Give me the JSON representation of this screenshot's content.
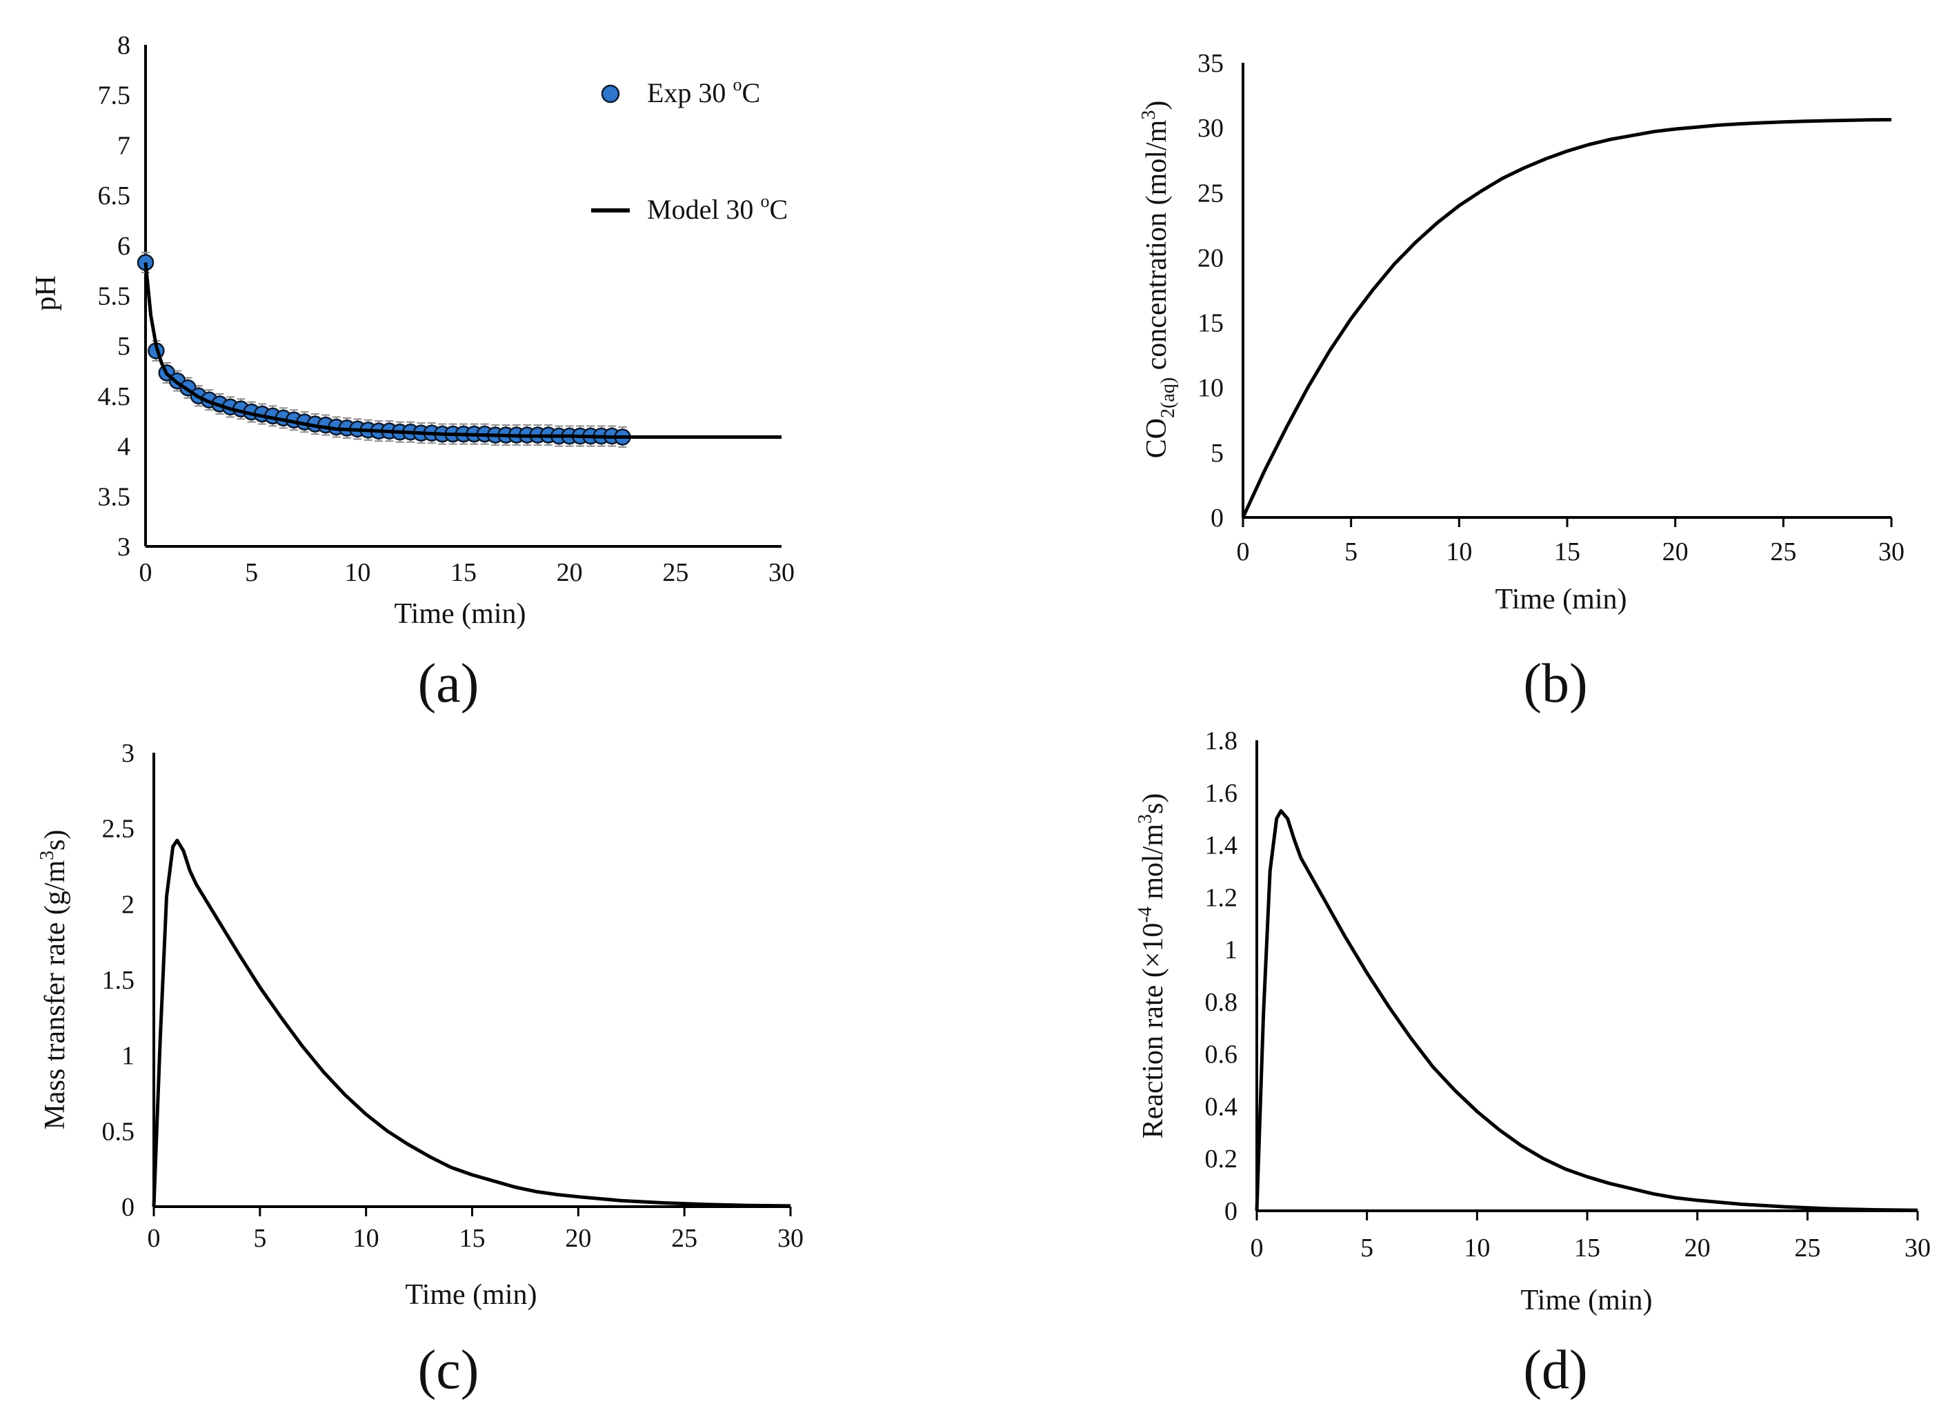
{
  "figure": {
    "colors": {
      "axis": "#000000",
      "model_line": "#000000",
      "marker_fill": "#2f77cc",
      "marker_edge": "#0d1a2e",
      "error_bar": "#8c8c8c"
    }
  },
  "chart_data": [
    {
      "panel_label": "(a)",
      "type": "scatter",
      "xlabel": "Time (min)",
      "ylabel": "pH",
      "xlim": [
        0,
        30
      ],
      "ylim": [
        3,
        8
      ],
      "xticks": [
        "0",
        "5",
        "10",
        "15",
        "20",
        "25",
        "30"
      ],
      "yticks": [
        "3",
        "3.5",
        "4",
        "4.5",
        "5",
        "5.5",
        "6",
        "6.5",
        "7",
        "7.5",
        "8"
      ],
      "legend": [
        {
          "label": "Exp 30 ",
          "sup": "o",
          "unit": "C",
          "marker": "circle"
        },
        {
          "label": "Model 30 ",
          "sup": "o",
          "unit": "C",
          "marker": "line"
        }
      ],
      "series": [
        {
          "name": "Exp 30 oC",
          "style": "markers",
          "error": 0.1,
          "x": [
            0,
            0.5,
            1,
            1.5,
            2,
            2.5,
            3,
            3.5,
            4,
            4.5,
            5,
            5.5,
            6,
            6.5,
            7,
            7.5,
            8,
            8.5,
            9,
            9.5,
            10,
            10.5,
            11,
            11.5,
            12,
            12.5,
            13,
            13.5,
            14,
            14.5,
            15,
            15.5,
            16,
            16.5,
            17,
            17.5,
            18,
            18.5,
            19,
            19.5,
            20,
            20.5,
            21,
            21.5,
            22,
            22.5
          ],
          "y": [
            5.83,
            4.95,
            4.73,
            4.65,
            4.58,
            4.5,
            4.46,
            4.42,
            4.39,
            4.37,
            4.34,
            4.32,
            4.3,
            4.28,
            4.26,
            4.24,
            4.22,
            4.21,
            4.19,
            4.18,
            4.17,
            4.16,
            4.15,
            4.15,
            4.14,
            4.14,
            4.13,
            4.13,
            4.12,
            4.12,
            4.12,
            4.12,
            4.12,
            4.11,
            4.11,
            4.11,
            4.11,
            4.11,
            4.11,
            4.1,
            4.1,
            4.1,
            4.1,
            4.1,
            4.1,
            4.09
          ]
        },
        {
          "name": "Model 30 oC",
          "style": "line",
          "x": [
            0,
            0.25,
            0.5,
            0.75,
            1,
            1.5,
            2,
            2.5,
            3,
            4,
            5,
            6,
            7,
            8,
            9,
            10,
            12,
            14,
            16,
            18,
            20,
            22,
            24,
            26,
            28,
            30
          ],
          "y": [
            5.83,
            5.3,
            5.0,
            4.83,
            4.72,
            4.63,
            4.56,
            4.49,
            4.44,
            4.37,
            4.32,
            4.28,
            4.24,
            4.2,
            4.17,
            4.16,
            4.14,
            4.12,
            4.11,
            4.1,
            4.1,
            4.09,
            4.09,
            4.09,
            4.09,
            4.09
          ]
        }
      ]
    },
    {
      "panel_label": "(b)",
      "type": "line",
      "xlabel": "Time (min)",
      "ylabel_parts": [
        "CO",
        "2(aq)",
        " concentration (mol/m",
        "3",
        ")"
      ],
      "xlim": [
        0,
        30
      ],
      "ylim": [
        0,
        35
      ],
      "xticks": [
        "0",
        "5",
        "10",
        "15",
        "20",
        "25",
        "30"
      ],
      "yticks": [
        "0",
        "5",
        "10",
        "15",
        "20",
        "25",
        "30",
        "35"
      ],
      "series": [
        {
          "name": "CO2(aq) concentration",
          "x": [
            0,
            1,
            2,
            3,
            4,
            5,
            6,
            7,
            8,
            9,
            10,
            11,
            12,
            13,
            14,
            15,
            16,
            17,
            18,
            19,
            20,
            21,
            22,
            23,
            24,
            25,
            26,
            27,
            28,
            29,
            30
          ],
          "y": [
            0,
            3.6,
            6.9,
            10.0,
            12.8,
            15.3,
            17.5,
            19.5,
            21.2,
            22.7,
            24.0,
            25.1,
            26.1,
            26.9,
            27.6,
            28.2,
            28.7,
            29.1,
            29.4,
            29.7,
            29.9,
            30.05,
            30.2,
            30.3,
            30.38,
            30.45,
            30.5,
            30.54,
            30.57,
            30.6,
            30.62
          ]
        }
      ]
    },
    {
      "panel_label": "(c)",
      "type": "line",
      "xlabel": "Time (min)",
      "ylabel_parts": [
        "Mass transfer rate (g/m",
        "3",
        "s)"
      ],
      "xlim": [
        0,
        30
      ],
      "ylim": [
        0,
        3
      ],
      "xticks": [
        "0",
        "5",
        "10",
        "15",
        "20",
        "25",
        "30"
      ],
      "yticks": [
        "0",
        "0.5",
        "1",
        "1.5",
        "2",
        "2.5",
        "3"
      ],
      "series": [
        {
          "name": "Mass transfer rate",
          "x": [
            0,
            0.3,
            0.6,
            0.9,
            1.1,
            1.4,
            1.7,
            2.0,
            3,
            4,
            5,
            6,
            7,
            8,
            9,
            10,
            11,
            12,
            13,
            14,
            15,
            16,
            17,
            18,
            19,
            20,
            22,
            24,
            26,
            28,
            30
          ],
          "y": [
            0,
            1.1,
            2.05,
            2.38,
            2.42,
            2.35,
            2.22,
            2.13,
            1.9,
            1.67,
            1.45,
            1.25,
            1.06,
            0.89,
            0.74,
            0.61,
            0.5,
            0.41,
            0.33,
            0.26,
            0.21,
            0.17,
            0.13,
            0.1,
            0.08,
            0.065,
            0.04,
            0.025,
            0.015,
            0.008,
            0.005
          ]
        }
      ]
    },
    {
      "panel_label": "(d)",
      "type": "line",
      "xlabel": "Time (min)",
      "ylabel_parts": [
        "Reaction rate  (×10",
        "-4",
        " mol/m",
        "3",
        "s)"
      ],
      "xlim": [
        0,
        30
      ],
      "ylim": [
        0,
        1.8
      ],
      "xticks": [
        "0",
        "5",
        "10",
        "15",
        "20",
        "25",
        "30"
      ],
      "yticks": [
        "0",
        "0.2",
        "0.4",
        "0.6",
        "0.8",
        "1",
        "1.2",
        "1.4",
        "1.6",
        "1.8"
      ],
      "series": [
        {
          "name": "Reaction rate",
          "x": [
            0,
            0.3,
            0.6,
            0.9,
            1.1,
            1.4,
            1.7,
            2.0,
            3,
            4,
            5,
            6,
            7,
            8,
            9,
            10,
            11,
            12,
            13,
            14,
            15,
            16,
            17,
            18,
            19,
            20,
            22,
            24,
            26,
            28,
            30
          ],
          "y": [
            0,
            0.75,
            1.3,
            1.5,
            1.53,
            1.5,
            1.42,
            1.35,
            1.2,
            1.05,
            0.91,
            0.78,
            0.66,
            0.55,
            0.46,
            0.38,
            0.31,
            0.25,
            0.2,
            0.16,
            0.13,
            0.105,
            0.085,
            0.065,
            0.05,
            0.04,
            0.025,
            0.015,
            0.008,
            0.004,
            0.002
          ]
        }
      ]
    }
  ]
}
